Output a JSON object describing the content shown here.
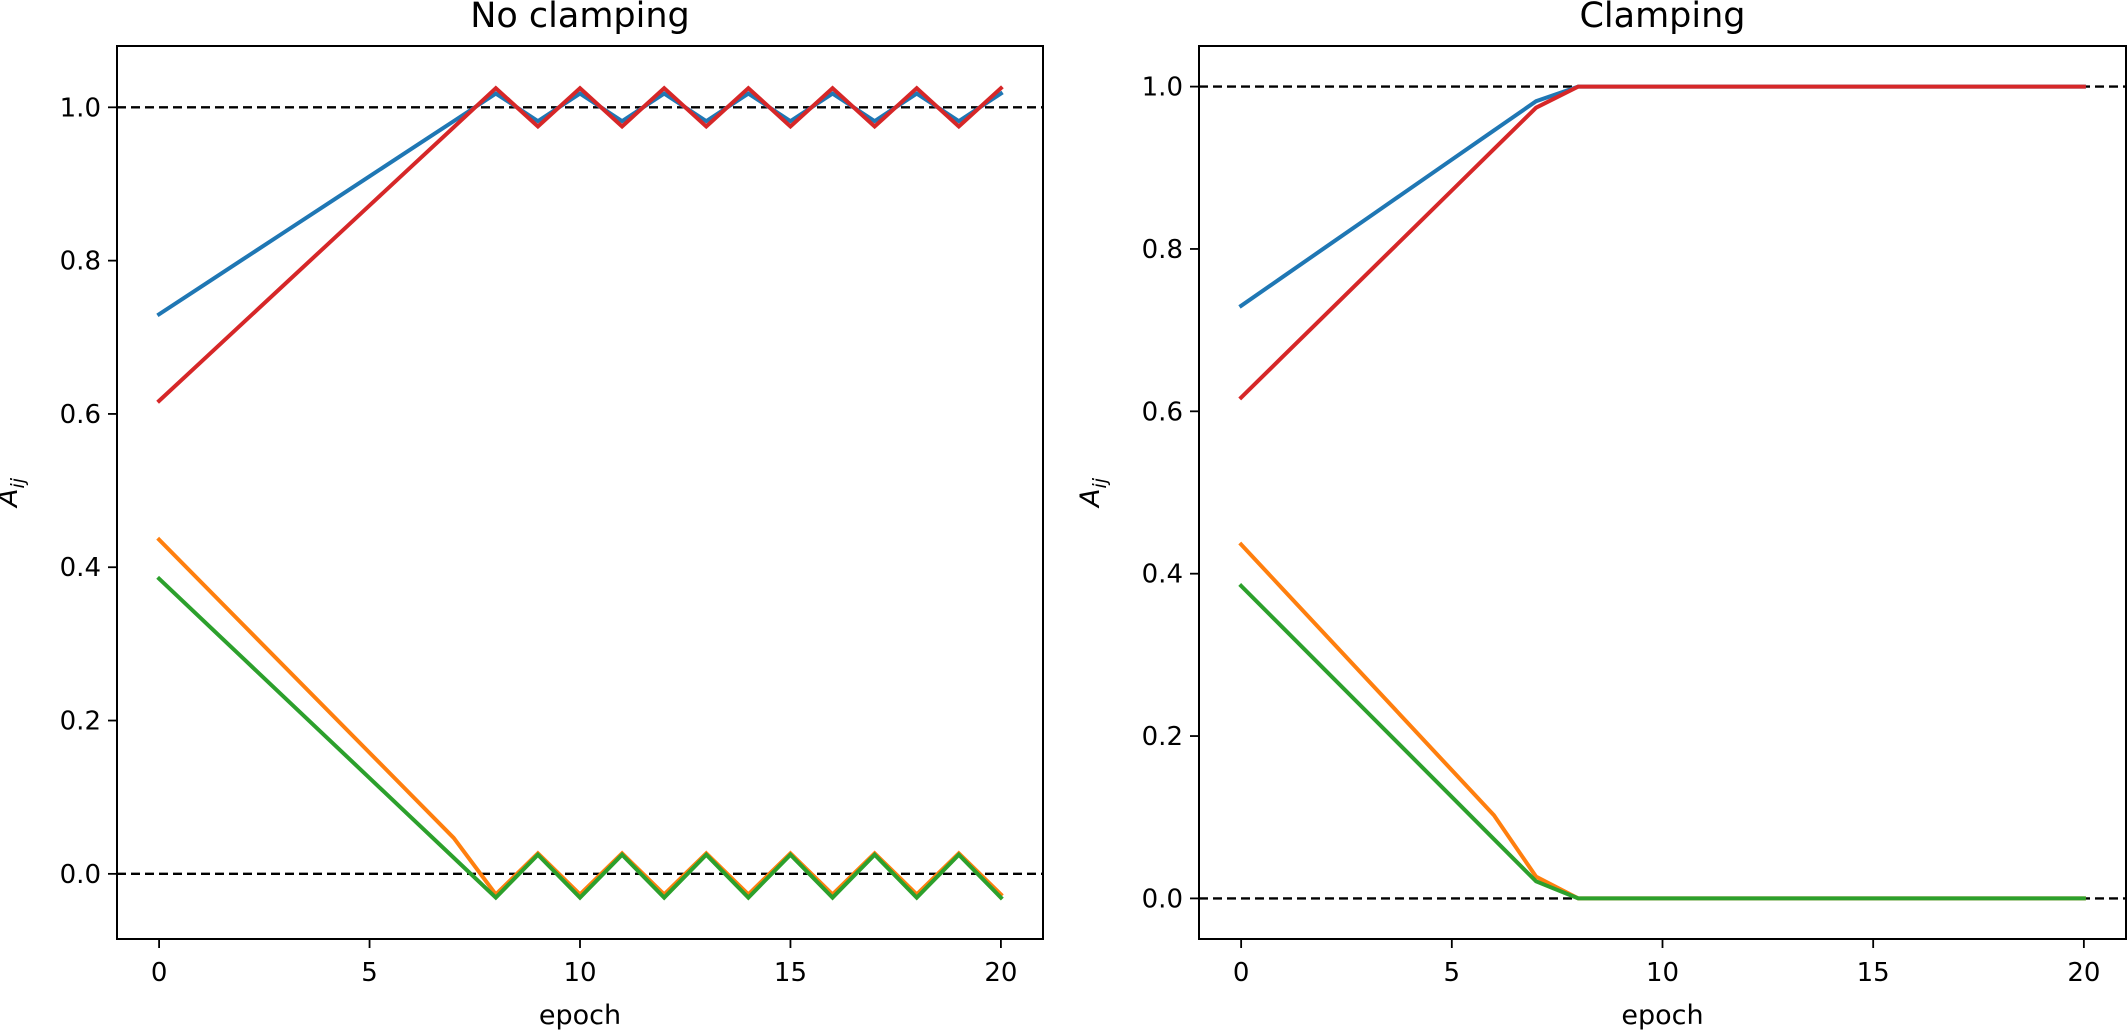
{
  "chart_data": [
    {
      "type": "line",
      "title": "No clamping",
      "xlabel": "epoch",
      "ylabel_main": "A",
      "ylabel_sub": "ij",
      "xlim": [
        -1,
        21
      ],
      "ylim": [
        -0.085,
        1.08
      ],
      "xticks": [
        0,
        5,
        10,
        15,
        20
      ],
      "xtick_labels": [
        "0",
        "5",
        "10",
        "15",
        "20"
      ],
      "yticks": [
        0.0,
        0.2,
        0.4,
        0.6,
        0.8,
        1.0
      ],
      "ytick_labels": [
        "0.0",
        "0.2",
        "0.4",
        "0.6",
        "0.8",
        "1.0"
      ],
      "reference_lines": [
        0.0,
        1.0
      ],
      "reference_line_color": "#000000",
      "x": [
        0,
        1,
        2,
        3,
        4,
        5,
        6,
        7,
        8,
        9,
        10,
        11,
        12,
        13,
        14,
        15,
        16,
        17,
        18,
        19,
        20
      ],
      "series": [
        {
          "color": "#1f77b4",
          "values": [
            0.73,
            0.766,
            0.802,
            0.838,
            0.874,
            0.91,
            0.946,
            0.982,
            1.018,
            0.982,
            1.018,
            0.982,
            1.018,
            0.982,
            1.018,
            0.982,
            1.018,
            0.982,
            1.018,
            0.982,
            1.018
          ]
        },
        {
          "color": "#ff7f0e",
          "values": [
            0.436,
            0.3804,
            0.3248,
            0.2692,
            0.2136,
            0.158,
            0.1024,
            0.0468,
            -0.0268,
            0.0268,
            -0.0268,
            0.0268,
            -0.0268,
            0.0268,
            -0.0268,
            0.0268,
            -0.0268,
            0.0268,
            -0.0268,
            0.0268,
            -0.0268
          ]
        },
        {
          "color": "#2ca02c",
          "values": [
            0.385,
            0.333,
            0.281,
            0.229,
            0.177,
            0.125,
            0.073,
            0.021,
            -0.031,
            0.025,
            -0.031,
            0.025,
            -0.031,
            0.025,
            -0.031,
            0.025,
            -0.031,
            0.025,
            -0.031,
            0.025,
            -0.031
          ]
        },
        {
          "color": "#d62728",
          "values": [
            0.617,
            0.668,
            0.719,
            0.77,
            0.821,
            0.872,
            0.923,
            0.974,
            1.025,
            0.975,
            1.025,
            0.975,
            1.025,
            0.975,
            1.025,
            0.975,
            1.025,
            0.975,
            1.025,
            0.975,
            1.025
          ]
        }
      ],
      "grid": false
    },
    {
      "type": "line",
      "title": "Clamping",
      "xlabel": "epoch",
      "ylabel_main": "A",
      "ylabel_sub": "ij",
      "xlim": [
        -1,
        21
      ],
      "ylim": [
        -0.05,
        1.05
      ],
      "xticks": [
        0,
        5,
        10,
        15,
        20
      ],
      "xtick_labels": [
        "0",
        "5",
        "10",
        "15",
        "20"
      ],
      "yticks": [
        0.0,
        0.2,
        0.4,
        0.6,
        0.8,
        1.0
      ],
      "ytick_labels": [
        "0.0",
        "0.2",
        "0.4",
        "0.6",
        "0.8",
        "1.0"
      ],
      "reference_lines": [
        0.0,
        1.0
      ],
      "reference_line_color": "#000000",
      "x": [
        0,
        1,
        2,
        3,
        4,
        5,
        6,
        7,
        8,
        9,
        10,
        11,
        12,
        13,
        14,
        15,
        16,
        17,
        18,
        19,
        20
      ],
      "series": [
        {
          "color": "#1f77b4",
          "values": [
            0.73,
            0.766,
            0.802,
            0.838,
            0.874,
            0.91,
            0.946,
            0.982,
            1.0,
            1.0,
            1.0,
            1.0,
            1.0,
            1.0,
            1.0,
            1.0,
            1.0,
            1.0,
            1.0,
            1.0,
            1.0
          ]
        },
        {
          "color": "#ff7f0e",
          "values": [
            0.436,
            0.3804,
            0.3248,
            0.2692,
            0.2136,
            0.158,
            0.1024,
            0.0268,
            0.0,
            0.0,
            0.0,
            0.0,
            0.0,
            0.0,
            0.0,
            0.0,
            0.0,
            0.0,
            0.0,
            0.0,
            0.0
          ]
        },
        {
          "color": "#2ca02c",
          "values": [
            0.385,
            0.333,
            0.281,
            0.229,
            0.177,
            0.125,
            0.073,
            0.021,
            0.0,
            0.0,
            0.0,
            0.0,
            0.0,
            0.0,
            0.0,
            0.0,
            0.0,
            0.0,
            0.0,
            0.0,
            0.0
          ]
        },
        {
          "color": "#d62728",
          "values": [
            0.617,
            0.668,
            0.719,
            0.77,
            0.821,
            0.872,
            0.923,
            0.974,
            1.0,
            1.0,
            1.0,
            1.0,
            1.0,
            1.0,
            1.0,
            1.0,
            1.0,
            1.0,
            1.0,
            1.0,
            1.0
          ]
        }
      ],
      "grid": false
    }
  ]
}
